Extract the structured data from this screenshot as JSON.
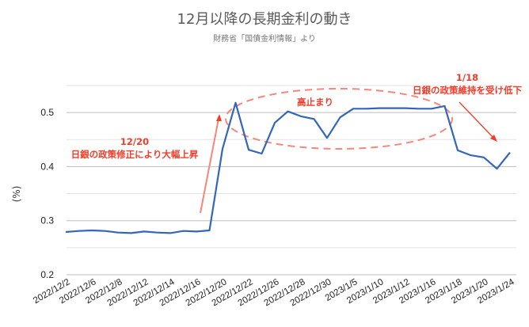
{
  "header": {
    "title": "12月以降の長期金利の動き",
    "subtitle": "財務省「国債金利情報」より"
  },
  "colors": {
    "line": "#3366b8",
    "annotation": "#f23c2a",
    "annotation_light": "#f8867a",
    "grid_major": "#bdbdbd",
    "grid_minor": "#e2e2e2"
  },
  "chart_data": {
    "type": "line",
    "title": "12月以降の長期金利の動き",
    "subtitle": "財務省「国債金利情報」より",
    "xlabel": "",
    "ylabel": "(%)",
    "ylim": [
      0.2,
      0.55
    ],
    "yticks": [
      "0.2",
      "0.3",
      "0.4",
      "0.5"
    ],
    "grid": true,
    "legend": "none",
    "x": [
      "2022/12/2",
      "2022/12/5",
      "2022/12/6",
      "2022/12/7",
      "2022/12/8",
      "2022/12/9",
      "2022/12/12",
      "2022/12/13",
      "2022/12/14",
      "2022/12/15",
      "2022/12/16",
      "2022/12/19",
      "2022/12/20",
      "2022/12/21",
      "2022/12/22",
      "2022/12/23",
      "2022/12/26",
      "2022/12/27",
      "2022/12/28",
      "2022/12/29",
      "2022/12/30",
      "2023/1/4",
      "2023/1/5",
      "2023/1/6",
      "2023/1/10",
      "2023/1/11",
      "2023/1/12",
      "2023/1/13",
      "2023/1/16",
      "2023/1/17",
      "2023/1/18",
      "2023/1/19",
      "2023/1/20",
      "2023/1/23",
      "2023/1/24"
    ],
    "xtick_labels": [
      "2022/12/2",
      "2022/12/6",
      "2022/12/8",
      "2022/12/12",
      "2022/12/14",
      "2022/12/16",
      "2022/12/20",
      "2022/12/22",
      "2022/12/26",
      "2022/12/28",
      "2022/12/30",
      "2023/1/5",
      "2023/1/10",
      "2023/1/12",
      "2023/1/16",
      "2023/1/18",
      "2023/1/20",
      "2023/1/24"
    ],
    "series": [
      {
        "name": "長期金利",
        "values": [
          0.279,
          0.281,
          0.282,
          0.281,
          0.278,
          0.277,
          0.28,
          0.278,
          0.277,
          0.281,
          0.28,
          0.282,
          0.433,
          0.518,
          0.431,
          0.424,
          0.481,
          0.502,
          0.493,
          0.488,
          0.453,
          0.491,
          0.507,
          0.507,
          0.508,
          0.508,
          0.508,
          0.507,
          0.507,
          0.512,
          0.43,
          0.421,
          0.417,
          0.396,
          0.426
        ]
      }
    ],
    "annotations": [
      {
        "label_line1": "12/20",
        "label_line2": "日銀の政策修正により大幅上昇",
        "kind": "arrow-up"
      },
      {
        "label_line1": "高止まり",
        "kind": "dashed-ellipse"
      },
      {
        "label_line1": "1/18",
        "label_line2": "日銀の政策維持を受け低下",
        "kind": "arrow-down"
      }
    ]
  }
}
